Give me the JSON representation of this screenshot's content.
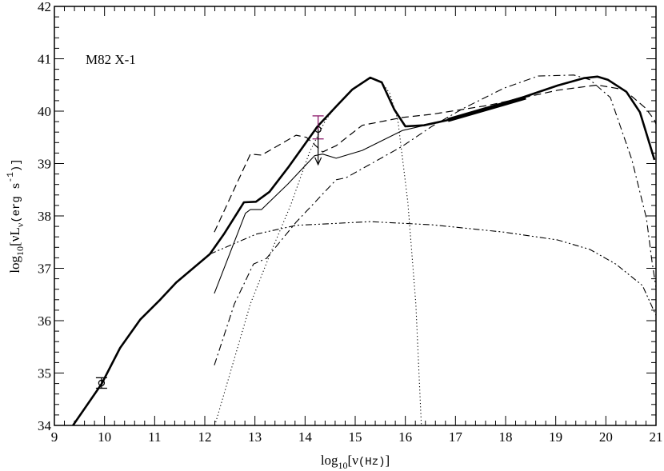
{
  "chart_data": {
    "type": "line",
    "title": "",
    "annotation": "M82 X-1",
    "xlabel": {
      "prefix": "log",
      "sub": "10",
      "open": "[",
      "nu": "ν",
      "unit": "(Hz)",
      "close": "]"
    },
    "ylabel": {
      "prefix": "log",
      "sub": "10",
      "open": "[",
      "nuL": "νL",
      "nu_sub": "ν",
      "unit": "(erg s",
      "exp": "-1",
      "close": ")]"
    },
    "xlim": [
      9,
      21
    ],
    "ylim": [
      34,
      42
    ],
    "xticks": [
      "9",
      "10",
      "11",
      "12",
      "13",
      "14",
      "15",
      "16",
      "17",
      "18",
      "19",
      "20",
      "21"
    ],
    "yticks": [
      "34",
      "35",
      "36",
      "37",
      "38",
      "39",
      "40",
      "41",
      "42"
    ],
    "minor_tick_step": 0.2,
    "grid": false,
    "series": [
      {
        "id": "total",
        "style": "thick",
        "x": [
          9.37,
          9.94,
          10.31,
          10.71,
          11.11,
          11.43,
          12.1,
          12.38,
          12.78,
          13.02,
          13.29,
          13.66,
          14.25,
          14.62,
          14.94,
          15.3,
          15.53,
          15.78,
          16.0,
          16.37,
          16.85,
          18.33,
          19.04,
          19.56,
          19.83,
          20.04,
          20.41,
          20.68,
          20.97
        ],
        "y": [
          34.0,
          34.79,
          35.48,
          36.02,
          36.4,
          36.73,
          37.27,
          37.65,
          38.26,
          38.27,
          38.46,
          38.92,
          39.71,
          40.09,
          40.41,
          40.64,
          40.55,
          40.03,
          39.71,
          39.73,
          39.83,
          40.26,
          40.49,
          40.63,
          40.66,
          40.6,
          40.37,
          39.98,
          39.07
        ]
      },
      {
        "id": "solid-thin",
        "style": "solid",
        "x": [
          12.19,
          12.81,
          12.91,
          13.13,
          13.66,
          14.19,
          14.35,
          14.62,
          15.14,
          15.94,
          16.53
        ],
        "y": [
          36.52,
          38.05,
          38.12,
          38.12,
          38.61,
          39.15,
          39.18,
          39.1,
          39.25,
          39.63,
          39.76
        ]
      },
      {
        "id": "dashed",
        "style": "dashed",
        "x": [
          12.19,
          12.91,
          13.13,
          13.82,
          14.03,
          14.35,
          14.62,
          15.14,
          15.94,
          16.53,
          17.65,
          19.04,
          19.83,
          20.36,
          20.79,
          20.97,
          21.0
        ],
        "y": [
          37.69,
          39.18,
          39.16,
          39.54,
          39.5,
          39.22,
          39.34,
          39.73,
          39.88,
          39.94,
          40.11,
          40.4,
          40.5,
          40.41,
          40.06,
          39.83,
          39.75
        ]
      },
      {
        "id": "dash-dot",
        "style": "dashdot",
        "x": [
          12.19,
          12.59,
          12.97,
          13.23,
          13.82,
          14.62,
          14.82,
          15.94,
          16.53,
          17.17,
          17.97,
          18.65,
          19.36,
          19.68,
          20.09,
          20.52,
          20.81,
          20.92,
          21.0
        ],
        "y": [
          35.15,
          36.32,
          37.08,
          37.19,
          37.88,
          38.69,
          38.73,
          39.33,
          39.71,
          40.06,
          40.44,
          40.67,
          40.69,
          40.6,
          40.26,
          39.07,
          37.95,
          37.13,
          36.63
        ]
      },
      {
        "id": "dash-dot-dot",
        "style": "dashdotdot",
        "x": [
          12.1,
          13.02,
          13.82,
          15.3,
          16.53,
          17.97,
          19.04,
          19.68,
          20.2,
          20.73,
          21.0
        ],
        "y": [
          37.27,
          37.65,
          37.82,
          37.89,
          37.83,
          37.69,
          37.54,
          37.36,
          37.08,
          36.67,
          36.1
        ]
      },
      {
        "id": "dotted",
        "style": "dotted",
        "x": [
          12.2,
          12.91,
          13.29,
          13.71,
          14.09,
          14.41,
          14.62,
          14.94,
          15.3,
          15.53,
          15.69,
          15.85,
          16.05,
          16.21,
          16.32
        ],
        "y": [
          34.0,
          36.32,
          37.24,
          38.2,
          39.22,
          39.83,
          40.09,
          40.41,
          40.64,
          40.55,
          40.34,
          39.83,
          38.26,
          36.32,
          34.0
        ]
      },
      {
        "id": "xray-powerlaw",
        "style": "bold",
        "x": [
          16.85,
          18.4
        ],
        "y": [
          39.83,
          40.26
        ]
      }
    ],
    "points": [
      {
        "id": "radio",
        "x": 9.94,
        "y": 34.81,
        "ylow": 34.71,
        "yhigh": 34.91,
        "color": "#000000"
      },
      {
        "id": "near-ir",
        "x": 14.26,
        "y": 39.65,
        "ylow": 39.47,
        "yhigh": 39.91,
        "color": "#8b1a6b"
      }
    ],
    "upper_limits": [
      {
        "x": 14.26,
        "y_from": 39.65,
        "y_to": 38.98
      }
    ]
  }
}
